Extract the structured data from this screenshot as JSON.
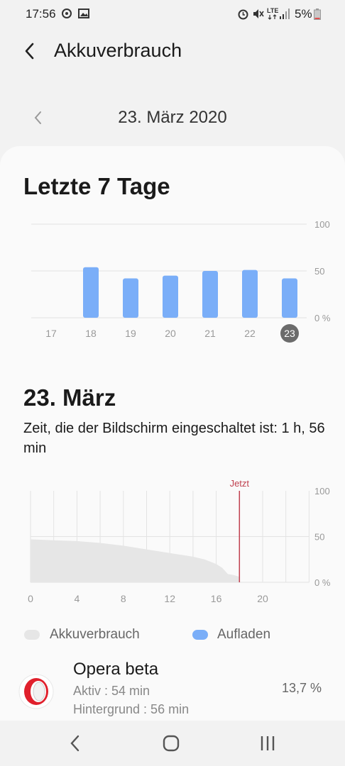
{
  "status_bar": {
    "time": "17:56",
    "battery": "5%",
    "network": "LTE",
    "icons": [
      "sync-icon",
      "image-icon",
      "alarm-icon",
      "mute-icon",
      "lte-icon",
      "signal-icon",
      "battery-icon"
    ]
  },
  "header": {
    "title": "Akkuverbrauch",
    "back_icon": "back-arrow-icon"
  },
  "date_nav": {
    "date": "23. März 2020",
    "prev_icon": "chevron-left-icon"
  },
  "weekly": {
    "title": "Letzte 7 Tage"
  },
  "day": {
    "title": "23. März",
    "screen_time": "Zeit, die der Bildschirm eingeschaltet ist: 1 h, 56 min"
  },
  "legend": {
    "usage_label": "Akkuverbrauch",
    "charging_label": "Aufladen"
  },
  "app": {
    "name": "Opera beta",
    "active": "Aktiv : 54 min",
    "background": "Hintergrund : 56 min",
    "percent": "13,7 %",
    "icon": "opera-icon"
  },
  "nav_bar": {
    "icons": [
      "back-nav-icon",
      "home-icon",
      "recents-icon"
    ]
  },
  "colors": {
    "bar": "#7aaef8",
    "selected_day": "#6b6b6b",
    "now_line": "#c0404f",
    "area": "#e6e6e6"
  },
  "chart_data": [
    {
      "type": "bar",
      "categories": [
        "17",
        "18",
        "19",
        "20",
        "21",
        "22",
        "23"
      ],
      "selected_category": "23",
      "values": [
        0,
        54,
        42,
        45,
        50,
        51,
        42
      ],
      "y_ticks": [
        "100",
        "50",
        "0 %"
      ],
      "ylim": [
        0,
        100
      ],
      "grid": true
    },
    {
      "type": "area",
      "x_ticks": [
        "0",
        "4",
        "8",
        "12",
        "16",
        "20"
      ],
      "y_ticks": [
        "100",
        "50",
        "0 %"
      ],
      "xlim": [
        0,
        24
      ],
      "ylim": [
        0,
        100
      ],
      "marker_label": "Jetzt",
      "marker_x": 18,
      "x": [
        0,
        2,
        4,
        6,
        8,
        10,
        12,
        13,
        14,
        15,
        16,
        16.5,
        17,
        17.5,
        18
      ],
      "y": [
        47,
        46,
        45,
        43,
        40,
        36,
        32,
        30,
        28,
        25,
        20,
        16,
        9,
        8,
        6
      ],
      "grid": true
    }
  ]
}
